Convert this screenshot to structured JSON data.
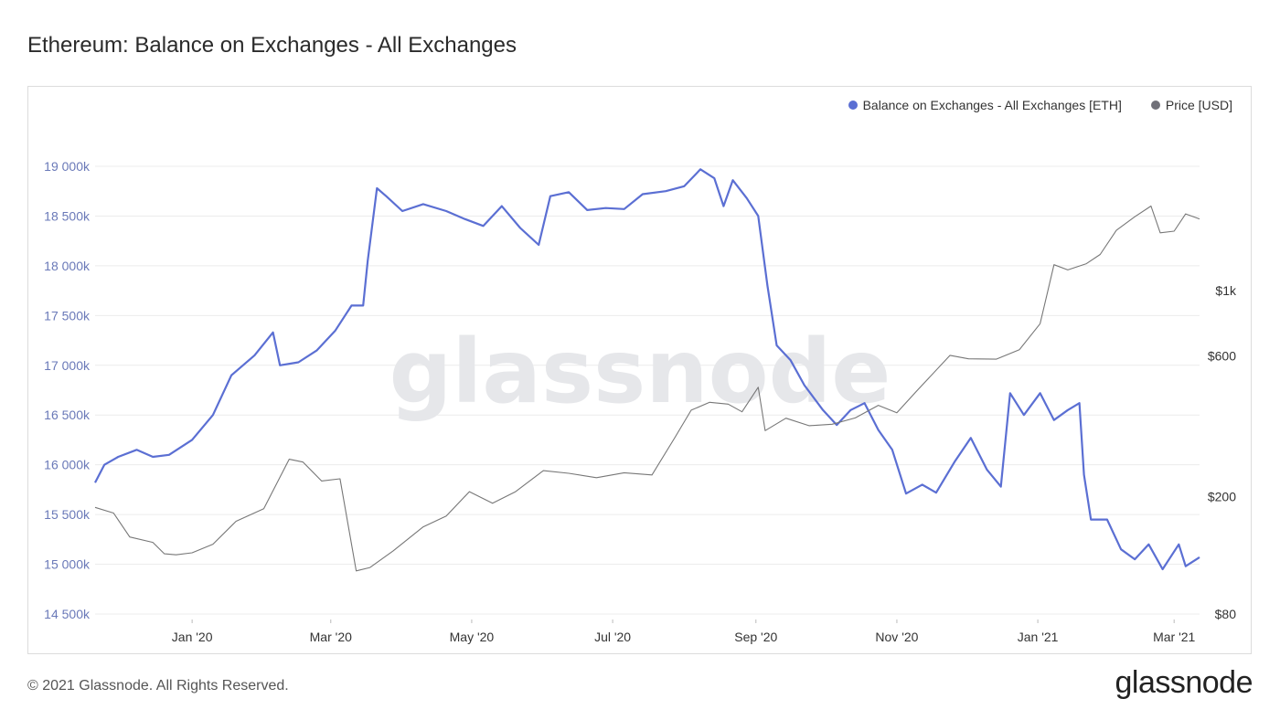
{
  "title": "Ethereum: Balance on Exchanges - All Exchanges",
  "footer": "© 2021 Glassnode. All Rights Reserved.",
  "brand": "glassnode",
  "watermark": "glassnode",
  "colors": {
    "balance": "#5b6fd3",
    "price": "#777777",
    "grid": "#ececec"
  },
  "legend": [
    {
      "label": "Balance on Exchanges - All Exchanges [ETH]",
      "color": "#5b6fd3"
    },
    {
      "label": "Price [USD]",
      "color": "#707078"
    }
  ],
  "chart_data": {
    "type": "line",
    "title": "Ethereum: Balance on Exchanges - All Exchanges",
    "x_range": [
      "2019-11-20",
      "2021-03-12"
    ],
    "x_ticks": [
      {
        "label": "Jan '20",
        "date": "2020-01-01"
      },
      {
        "label": "Mar '20",
        "date": "2020-03-01"
      },
      {
        "label": "May '20",
        "date": "2020-05-01"
      },
      {
        "label": "Jul '20",
        "date": "2020-07-01"
      },
      {
        "label": "Sep '20",
        "date": "2020-09-01"
      },
      {
        "label": "Nov '20",
        "date": "2020-11-01"
      },
      {
        "label": "Jan '21",
        "date": "2021-01-01"
      },
      {
        "label": "Mar '21",
        "date": "2021-03-01"
      }
    ],
    "y_left": {
      "ylim": [
        14500,
        19000
      ],
      "unit": "k",
      "ticks": [
        {
          "label": "19 000k",
          "value": 19000
        },
        {
          "label": "18 500k",
          "value": 18500
        },
        {
          "label": "18 000k",
          "value": 18000
        },
        {
          "label": "17 500k",
          "value": 17500
        },
        {
          "label": "17 000k",
          "value": 17000
        },
        {
          "label": "16 500k",
          "value": 16500
        },
        {
          "label": "16 000k",
          "value": 16000
        },
        {
          "label": "15 500k",
          "value": 15500
        },
        {
          "label": "15 000k",
          "value": 15000
        },
        {
          "label": "14 500k",
          "value": 14500
        }
      ]
    },
    "y_right": {
      "scale": "log",
      "ticks": [
        {
          "label": "$1k",
          "value": 1000
        },
        {
          "label": "$600",
          "value": 600
        },
        {
          "label": "$200",
          "value": 200
        },
        {
          "label": "$80",
          "value": 80
        }
      ]
    },
    "grid": true,
    "legend_position": "top-right",
    "series": [
      {
        "name": "Balance on Exchanges - All Exchanges [ETH]",
        "axis": "left",
        "color": "#5b6fd3",
        "points": [
          [
            "2019-11-20",
            15820
          ],
          [
            "2019-11-24",
            16000
          ],
          [
            "2019-11-30",
            16080
          ],
          [
            "2019-12-08",
            16150
          ],
          [
            "2019-12-15",
            16080
          ],
          [
            "2019-12-22",
            16100
          ],
          [
            "2020-01-01",
            16250
          ],
          [
            "2020-01-10",
            16500
          ],
          [
            "2020-01-18",
            16900
          ],
          [
            "2020-01-28",
            17100
          ],
          [
            "2020-02-05",
            17330
          ],
          [
            "2020-02-08",
            17000
          ],
          [
            "2020-02-16",
            17030
          ],
          [
            "2020-02-24",
            17150
          ],
          [
            "2020-03-03",
            17350
          ],
          [
            "2020-03-10",
            17600
          ],
          [
            "2020-03-15",
            17600
          ],
          [
            "2020-03-17",
            18050
          ],
          [
            "2020-03-21",
            18780
          ],
          [
            "2020-03-25",
            18700
          ],
          [
            "2020-04-01",
            18550
          ],
          [
            "2020-04-10",
            18620
          ],
          [
            "2020-04-20",
            18550
          ],
          [
            "2020-04-28",
            18470
          ],
          [
            "2020-05-06",
            18400
          ],
          [
            "2020-05-14",
            18600
          ],
          [
            "2020-05-22",
            18380
          ],
          [
            "2020-05-30",
            18210
          ],
          [
            "2020-06-04",
            18700
          ],
          [
            "2020-06-12",
            18740
          ],
          [
            "2020-06-20",
            18560
          ],
          [
            "2020-06-28",
            18580
          ],
          [
            "2020-07-06",
            18570
          ],
          [
            "2020-07-14",
            18720
          ],
          [
            "2020-07-24",
            18750
          ],
          [
            "2020-08-01",
            18800
          ],
          [
            "2020-08-08",
            18970
          ],
          [
            "2020-08-14",
            18880
          ],
          [
            "2020-08-18",
            18600
          ],
          [
            "2020-08-22",
            18860
          ],
          [
            "2020-08-28",
            18680
          ],
          [
            "2020-09-02",
            18500
          ],
          [
            "2020-09-06",
            17800
          ],
          [
            "2020-09-10",
            17200
          ],
          [
            "2020-09-16",
            17050
          ],
          [
            "2020-09-22",
            16800
          ],
          [
            "2020-09-30",
            16550
          ],
          [
            "2020-10-06",
            16400
          ],
          [
            "2020-10-12",
            16550
          ],
          [
            "2020-10-18",
            16620
          ],
          [
            "2020-10-24",
            16350
          ],
          [
            "2020-10-30",
            16150
          ],
          [
            "2020-11-05",
            15710
          ],
          [
            "2020-11-12",
            15800
          ],
          [
            "2020-11-18",
            15720
          ],
          [
            "2020-11-26",
            16030
          ],
          [
            "2020-12-03",
            16270
          ],
          [
            "2020-12-10",
            15950
          ],
          [
            "2020-12-16",
            15780
          ],
          [
            "2020-12-20",
            16720
          ],
          [
            "2020-12-26",
            16500
          ],
          [
            "2021-01-02",
            16720
          ],
          [
            "2021-01-08",
            16450
          ],
          [
            "2021-01-14",
            16550
          ],
          [
            "2021-01-19",
            16620
          ],
          [
            "2021-01-21",
            15900
          ],
          [
            "2021-01-24",
            15450
          ],
          [
            "2021-01-31",
            15450
          ],
          [
            "2021-02-06",
            15150
          ],
          [
            "2021-02-12",
            15050
          ],
          [
            "2021-02-18",
            15200
          ],
          [
            "2021-02-24",
            14950
          ],
          [
            "2021-03-03",
            15200
          ],
          [
            "2021-03-06",
            14980
          ],
          [
            "2021-03-12",
            15070
          ]
        ]
      },
      {
        "name": "Price [USD]",
        "axis": "right",
        "color": "#777777",
        "points": [
          [
            "2019-11-20",
            184
          ],
          [
            "2019-11-28",
            176
          ],
          [
            "2019-12-05",
            146
          ],
          [
            "2019-12-15",
            140
          ],
          [
            "2019-12-20",
            128
          ],
          [
            "2019-12-25",
            127
          ],
          [
            "2020-01-01",
            129
          ],
          [
            "2020-01-10",
            138
          ],
          [
            "2020-01-20",
            165
          ],
          [
            "2020-02-01",
            182
          ],
          [
            "2020-02-12",
            268
          ],
          [
            "2020-02-18",
            262
          ],
          [
            "2020-02-26",
            226
          ],
          [
            "2020-03-05",
            230
          ],
          [
            "2020-03-12",
            112
          ],
          [
            "2020-03-18",
            115
          ],
          [
            "2020-03-28",
            131
          ],
          [
            "2020-04-10",
            158
          ],
          [
            "2020-04-20",
            172
          ],
          [
            "2020-04-30",
            208
          ],
          [
            "2020-05-10",
            190
          ],
          [
            "2020-05-20",
            208
          ],
          [
            "2020-06-01",
            245
          ],
          [
            "2020-06-12",
            240
          ],
          [
            "2020-06-24",
            232
          ],
          [
            "2020-07-06",
            241
          ],
          [
            "2020-07-18",
            237
          ],
          [
            "2020-07-28",
            318
          ],
          [
            "2020-08-04",
            393
          ],
          [
            "2020-08-12",
            418
          ],
          [
            "2020-08-20",
            412
          ],
          [
            "2020-08-26",
            388
          ],
          [
            "2020-09-02",
            470
          ],
          [
            "2020-09-05",
            335
          ],
          [
            "2020-09-14",
            369
          ],
          [
            "2020-09-24",
            348
          ],
          [
            "2020-10-04",
            352
          ],
          [
            "2020-10-14",
            370
          ],
          [
            "2020-10-24",
            408
          ],
          [
            "2020-11-01",
            385
          ],
          [
            "2020-11-10",
            460
          ],
          [
            "2020-11-24",
            603
          ],
          [
            "2020-12-02",
            587
          ],
          [
            "2020-12-14",
            585
          ],
          [
            "2020-12-24",
            630
          ],
          [
            "2021-01-02",
            772
          ],
          [
            "2021-01-08",
            1224
          ],
          [
            "2021-01-14",
            1175
          ],
          [
            "2021-01-22",
            1233
          ],
          [
            "2021-01-28",
            1326
          ],
          [
            "2021-02-04",
            1600
          ],
          [
            "2021-02-12",
            1780
          ],
          [
            "2021-02-19",
            1935
          ],
          [
            "2021-02-23",
            1570
          ],
          [
            "2021-03-01",
            1590
          ],
          [
            "2021-03-06",
            1820
          ],
          [
            "2021-03-12",
            1750
          ]
        ]
      }
    ]
  }
}
